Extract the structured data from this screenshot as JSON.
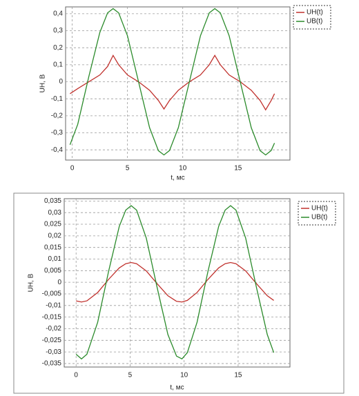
{
  "chart_data": [
    {
      "type": "line",
      "xlabel": "t, мс",
      "ylabel": "UH, B",
      "grid": true,
      "xlim": [
        -0.6,
        19.7
      ],
      "xticks": [
        0,
        5,
        10,
        15
      ],
      "ylim": [
        -0.46,
        0.44
      ],
      "yticks": [
        {
          "value": -0.4,
          "label": "-0,4"
        },
        {
          "value": -0.3,
          "label": "-0,3"
        },
        {
          "value": -0.2,
          "label": "-0,2"
        },
        {
          "value": -0.1,
          "label": "-0,1"
        },
        0,
        {
          "value": 0.1,
          "label": "0,1"
        },
        {
          "value": 0.2,
          "label": "0,2"
        },
        {
          "value": 0.3,
          "label": "0,3"
        },
        {
          "value": 0.4,
          "label": "0,4"
        }
      ],
      "x": [
        -0.2,
        0.5,
        1.5,
        2.5,
        3.2,
        3.7,
        4.2,
        5,
        6,
        7,
        7.8,
        8.3,
        8.8,
        9.6,
        10.6,
        11.6,
        12.4,
        12.9,
        13.4,
        14.2,
        15.2,
        16.2,
        17,
        17.5,
        18,
        18.3
      ],
      "series": [
        {
          "name": "UH(t)",
          "color": "#c0302c",
          "values": [
            -0.07,
            -0.04,
            0.0,
            0.04,
            0.09,
            0.155,
            0.1,
            0.04,
            0.0,
            -0.05,
            -0.11,
            -0.16,
            -0.11,
            -0.05,
            0.0,
            0.04,
            0.1,
            0.155,
            0.1,
            0.04,
            0.0,
            -0.05,
            -0.11,
            -0.165,
            -0.11,
            -0.07
          ]
        },
        {
          "name": "UB(t)",
          "color": "#2a8a2a",
          "values": [
            -0.37,
            -0.25,
            0.03,
            0.29,
            0.405,
            0.43,
            0.405,
            0.27,
            0.0,
            -0.27,
            -0.405,
            -0.43,
            -0.404,
            -0.27,
            0.0,
            0.27,
            0.405,
            0.43,
            0.405,
            0.27,
            0.0,
            -0.27,
            -0.405,
            -0.43,
            -0.404,
            -0.36
          ]
        }
      ]
    },
    {
      "type": "line",
      "xlabel": "t, мс",
      "ylabel": "UH, B",
      "grid": true,
      "xlim": [
        -1.1,
        19.8
      ],
      "xticks": [
        0,
        5,
        10,
        15
      ],
      "ylim": [
        -0.0365,
        0.036
      ],
      "yticks": [
        {
          "value": -0.035,
          "label": "-0,035"
        },
        {
          "value": -0.03,
          "label": "-0,03"
        },
        {
          "value": -0.025,
          "label": "-0,025"
        },
        {
          "value": -0.02,
          "label": "-0,02"
        },
        {
          "value": -0.015,
          "label": "-0,015"
        },
        {
          "value": -0.01,
          "label": "-0,01"
        },
        {
          "value": -0.005,
          "label": "-0,005"
        },
        0,
        {
          "value": 0.005,
          "label": "0,005"
        },
        {
          "value": 0.01,
          "label": "0,01"
        },
        {
          "value": 0.015,
          "label": "0,015"
        },
        {
          "value": 0.02,
          "label": "0,02"
        },
        {
          "value": 0.025,
          "label": "0,025"
        },
        {
          "value": 0.03,
          "label": "0,03"
        },
        {
          "value": 0.035,
          "label": "0,035"
        }
      ],
      "x": [
        0,
        0.5,
        1,
        2,
        3,
        4,
        4.6,
        5.1,
        5.6,
        6.5,
        7.5,
        8.5,
        9.3,
        9.8,
        10.3,
        11.2,
        12.2,
        13.2,
        13.8,
        14.3,
        14.8,
        15.7,
        16.7,
        17.7,
        18.3
      ],
      "series": [
        {
          "name": "UH(t)",
          "color": "#c0302c",
          "values": [
            -0.008,
            -0.0085,
            -0.008,
            -0.0044,
            0.0012,
            0.0062,
            0.008,
            0.0085,
            0.008,
            0.0049,
            -0.0006,
            -0.0058,
            -0.0082,
            -0.0085,
            -0.0078,
            -0.0044,
            0.0012,
            0.0062,
            0.008,
            0.0085,
            0.008,
            0.0049,
            -0.0006,
            -0.0058,
            -0.0078
          ]
        },
        {
          "name": "UB(t)",
          "color": "#2a8a2a",
          "values": [
            -0.031,
            -0.033,
            -0.031,
            -0.0172,
            0.0045,
            0.0241,
            0.0311,
            0.033,
            0.0311,
            0.019,
            -0.0022,
            -0.0225,
            -0.0318,
            -0.033,
            -0.0303,
            -0.0172,
            0.0045,
            0.0241,
            0.0311,
            0.033,
            0.0311,
            0.019,
            -0.0023,
            -0.0225,
            -0.0303
          ]
        }
      ]
    }
  ]
}
